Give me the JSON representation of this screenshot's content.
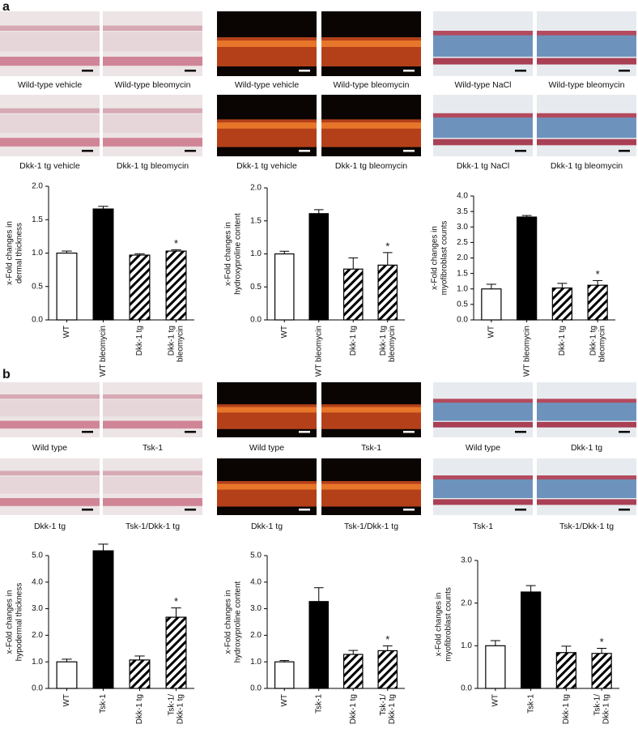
{
  "figure": {
    "panels": [
      {
        "label": "a",
        "rows": [
          [
            "Wild-type vehicle",
            "Wild-type bleomycin",
            "Wild-type vehicle",
            "Wild-type bleomycin",
            "Wild-type NaCl",
            "Wild-type bleomycin"
          ],
          [
            "Dkk-1 tg vehicle",
            "Dkk-1 tg bleomycin",
            "Dkk-1 tg vehicle",
            "Dkk-1 tg bleomycin",
            "Dkk-1 tg NaCl",
            "Dkk-1 tg bleomycin"
          ]
        ]
      },
      {
        "label": "b",
        "rows": [
          [
            "Wild type",
            "Tsk-1",
            "Wild type",
            "Tsk-1",
            "Wild type",
            "Dkk-1 tg"
          ],
          [
            "Dkk-1 tg",
            "Tsk-1/Dkk-1 tg",
            "Dkk-1 tg",
            "Tsk-1/Dkk-1 tg",
            "Tsk-1",
            "Tsk-1/Dkk-1 tg"
          ]
        ]
      }
    ]
  },
  "chart_data": [
    {
      "type": "bar",
      "ylabel": [
        "x-Fold changes in",
        "dermal thickness"
      ],
      "categories": [
        [
          "WT"
        ],
        [
          "WT bleomycin"
        ],
        [
          "Dkk-1 tg"
        ],
        [
          "Dkk-1 tg",
          "bleomycin"
        ]
      ],
      "values": [
        1.0,
        1.66,
        0.97,
        1.03
      ],
      "errors": [
        0.03,
        0.04,
        0.02,
        0.02
      ],
      "value_annotations": [
        null,
        null,
        null,
        "*"
      ],
      "bar_styles": [
        "open",
        "filled",
        "hatched",
        "hatched"
      ],
      "ylim": [
        0,
        2.0
      ],
      "yticks": [
        {
          "value": 0,
          "label": "0.0"
        },
        0.5,
        {
          "value": 1,
          "label": "1.0"
        },
        1.5,
        {
          "value": 2,
          "label": "2.0"
        }
      ]
    },
    {
      "type": "bar",
      "ylabel": [
        "x-Fold changes in",
        "hydroxyproline content"
      ],
      "categories": [
        [
          "WT"
        ],
        [
          "WT bleomycin"
        ],
        [
          "Dkk-1 tg"
        ],
        [
          "Dkk-1 tg",
          "bleomycin"
        ]
      ],
      "values": [
        1.0,
        1.61,
        0.77,
        0.83
      ],
      "errors": [
        0.04,
        0.06,
        0.17,
        0.19
      ],
      "value_annotations": [
        null,
        null,
        null,
        "*"
      ],
      "bar_styles": [
        "open",
        "filled",
        "hatched",
        "hatched"
      ],
      "ylim": [
        0,
        2.0
      ],
      "yticks": [
        {
          "value": 0,
          "label": "0.0"
        },
        0.5,
        {
          "value": 1,
          "label": "1.0"
        },
        1.5,
        {
          "value": 2,
          "label": "2.0"
        }
      ]
    },
    {
      "type": "bar",
      "ylabel": [
        "x-Fold changes in",
        "myofibroblast counts"
      ],
      "categories": [
        [
          "WT"
        ],
        [
          "WT bleomycin"
        ],
        [
          "Dkk-1 tg"
        ],
        [
          "Dkk-1 tg",
          "bleomycin"
        ]
      ],
      "values": [
        1.0,
        3.32,
        1.03,
        1.12
      ],
      "errors": [
        0.15,
        0.05,
        0.15,
        0.15
      ],
      "value_annotations": [
        null,
        null,
        null,
        "*"
      ],
      "bar_styles": [
        "open",
        "filled",
        "hatched",
        "hatched"
      ],
      "ylim": [
        0,
        4.0
      ],
      "yticks": [
        {
          "value": 0,
          "label": "0.0"
        },
        0.5,
        {
          "value": 1,
          "label": "1.0"
        },
        1.5,
        {
          "value": 2,
          "label": "2.0"
        },
        2.5,
        {
          "value": 3,
          "label": "3.0"
        },
        3.5,
        {
          "value": 4,
          "label": "4.0"
        }
      ]
    },
    {
      "type": "bar",
      "ylabel": [
        "x-Fold changes in",
        "hypodermal thickness"
      ],
      "categories": [
        [
          "WT"
        ],
        [
          "Tsk-1"
        ],
        [
          "Dkk-1 tg"
        ],
        [
          "Tsk-1/",
          "Dkk-1 tg"
        ]
      ],
      "values": [
        1.0,
        5.18,
        1.07,
        2.68
      ],
      "errors": [
        0.1,
        0.25,
        0.15,
        0.35
      ],
      "value_annotations": [
        null,
        null,
        null,
        "*"
      ],
      "bar_styles": [
        "open",
        "filled",
        "hatched",
        "hatched"
      ],
      "ylim": [
        0,
        5.0
      ],
      "yticks": [
        {
          "value": 0,
          "label": "0.0"
        },
        {
          "value": 1,
          "label": "1.0"
        },
        {
          "value": 2,
          "label": "2.0"
        },
        {
          "value": 3,
          "label": "3.0"
        },
        {
          "value": 4,
          "label": "4.0"
        },
        {
          "value": 5,
          "label": "5.0"
        }
      ]
    },
    {
      "type": "bar",
      "ylabel": [
        "x-Fold changes in",
        "hydroxyproline content"
      ],
      "categories": [
        [
          "WT"
        ],
        [
          "Tsk-1"
        ],
        [
          "Dkk-1 tg"
        ],
        [
          "Tsk-1/",
          "Dkk-1 tg"
        ]
      ],
      "values": [
        1.0,
        3.27,
        1.28,
        1.42
      ],
      "errors": [
        0.05,
        0.52,
        0.15,
        0.18
      ],
      "value_annotations": [
        null,
        null,
        null,
        "*"
      ],
      "bar_styles": [
        "open",
        "filled",
        "hatched",
        "hatched"
      ],
      "ylim": [
        0,
        5.0
      ],
      "yticks": [
        {
          "value": 0,
          "label": "0.0"
        },
        {
          "value": 1,
          "label": "1.0"
        },
        {
          "value": 2,
          "label": "2.0"
        },
        {
          "value": 3,
          "label": "3.0"
        },
        {
          "value": 4,
          "label": "4.0"
        },
        {
          "value": 5,
          "label": "5.0"
        }
      ]
    },
    {
      "type": "bar",
      "ylabel": [
        "x-Fold changes in",
        "myofibroblast counts"
      ],
      "categories": [
        [
          "WT"
        ],
        [
          "Tsk-1"
        ],
        [
          "Dkk-1 tg"
        ],
        [
          "Tsk-1/",
          "Dkk-1 tg"
        ]
      ],
      "values": [
        1.0,
        2.26,
        0.84,
        0.82
      ],
      "errors": [
        0.12,
        0.15,
        0.15,
        0.12
      ],
      "value_annotations": [
        null,
        null,
        null,
        "*"
      ],
      "bar_styles": [
        "open",
        "filled",
        "hatched",
        "hatched"
      ],
      "ylim": [
        0,
        3.0
      ],
      "yticks": [
        {
          "value": 0,
          "label": "0.0"
        },
        {
          "value": 1,
          "label": "1.0"
        },
        {
          "value": 2,
          "label": "2.0"
        },
        {
          "value": 3,
          "label": "3.0"
        }
      ]
    }
  ]
}
